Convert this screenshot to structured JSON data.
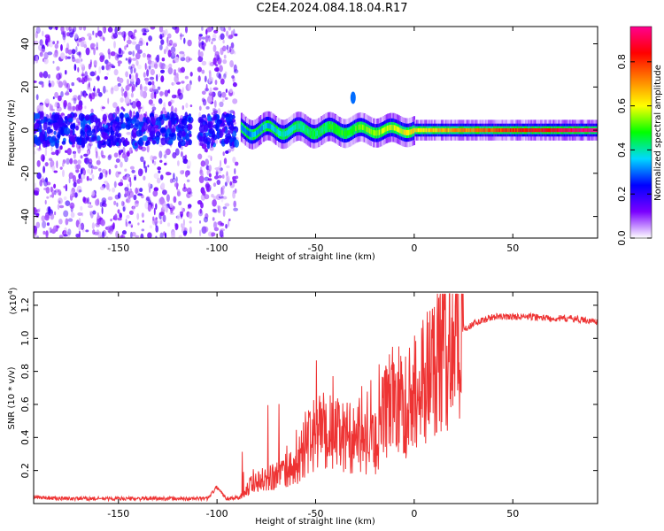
{
  "title": "C2E4.2024.084.18.04.R17",
  "chart_data": [
    {
      "type": "heatmap",
      "xlabel": "Height of straight line (km)",
      "ylabel": "Frequency (Hz)",
      "xlim": [
        -193,
        93
      ],
      "ylim": [
        -50,
        48
      ],
      "x_ticks": [
        -150,
        -100,
        -50,
        0,
        50
      ],
      "y_ticks": [
        -40,
        -20,
        0,
        20,
        40
      ],
      "colorbar": {
        "label": "Normalized spectral amplitude",
        "range": [
          0,
          0.96
        ],
        "ticks": [
          0.0,
          0.2,
          0.4,
          0.6,
          0.8
        ],
        "colormap": "rainbow",
        "stops": [
          "#ffffff",
          "#7a00ff",
          "#0000ff",
          "#00d8ff",
          "#00ff00",
          "#ffff00",
          "#ff8000",
          "#ff0000",
          "#ff0090"
        ]
      },
      "regions": [
        {
          "desc": "broadband scatter",
          "x_range": [
            -193,
            -113
          ],
          "freq_range": [
            -50,
            48
          ],
          "amplitude": 0.1
        },
        {
          "desc": "broadband scatter",
          "x_range": [
            -109,
            -90
          ],
          "freq_range": [
            -50,
            48
          ],
          "amplitude": 0.1
        },
        {
          "desc": "narrow band",
          "x_range": [
            -88,
            93
          ],
          "center_freq": 0,
          "half_width": 3,
          "amplitude_range": [
            0.3,
            0.96
          ]
        },
        {
          "desc": "blob",
          "x": -31,
          "freq": 15,
          "amplitude": 0.3
        }
      ]
    },
    {
      "type": "line",
      "xlabel": "Height of straight line (km)",
      "ylabel": "SNR (10 * v/v)",
      "y_multiplier": "(x10",
      "y_multiplier_exp": "4",
      "y_multiplier_close": ")",
      "xlim": [
        -193,
        93
      ],
      "ylim": [
        0,
        1.28
      ],
      "x_ticks": [
        -150,
        -100,
        -50,
        0,
        50
      ],
      "y_ticks": [
        0.2,
        0.4,
        0.6,
        0.8,
        1.0,
        1.2
      ],
      "line_color": "#ee3333",
      "series": [
        {
          "x": [
            -193,
            -180,
            -160,
            -140,
            -120,
            -105,
            -100,
            -95,
            -88,
            -80,
            -70,
            -60,
            -55,
            -50,
            -45,
            -40,
            -35,
            -30,
            -25,
            -20,
            -15,
            -10,
            -5,
            0,
            5,
            10,
            15,
            20,
            25,
            30,
            35,
            40,
            50,
            60,
            70,
            80,
            93
          ],
          "values": [
            0.04,
            0.03,
            0.03,
            0.03,
            0.03,
            0.03,
            0.1,
            0.03,
            0.04,
            0.15,
            0.17,
            0.22,
            0.35,
            0.42,
            0.45,
            0.42,
            0.4,
            0.4,
            0.36,
            0.35,
            0.55,
            0.65,
            0.58,
            0.68,
            0.75,
            0.85,
            0.92,
            1.0,
            1.05,
            1.09,
            1.11,
            1.13,
            1.13,
            1.13,
            1.12,
            1.12,
            1.1
          ]
        }
      ]
    }
  ]
}
